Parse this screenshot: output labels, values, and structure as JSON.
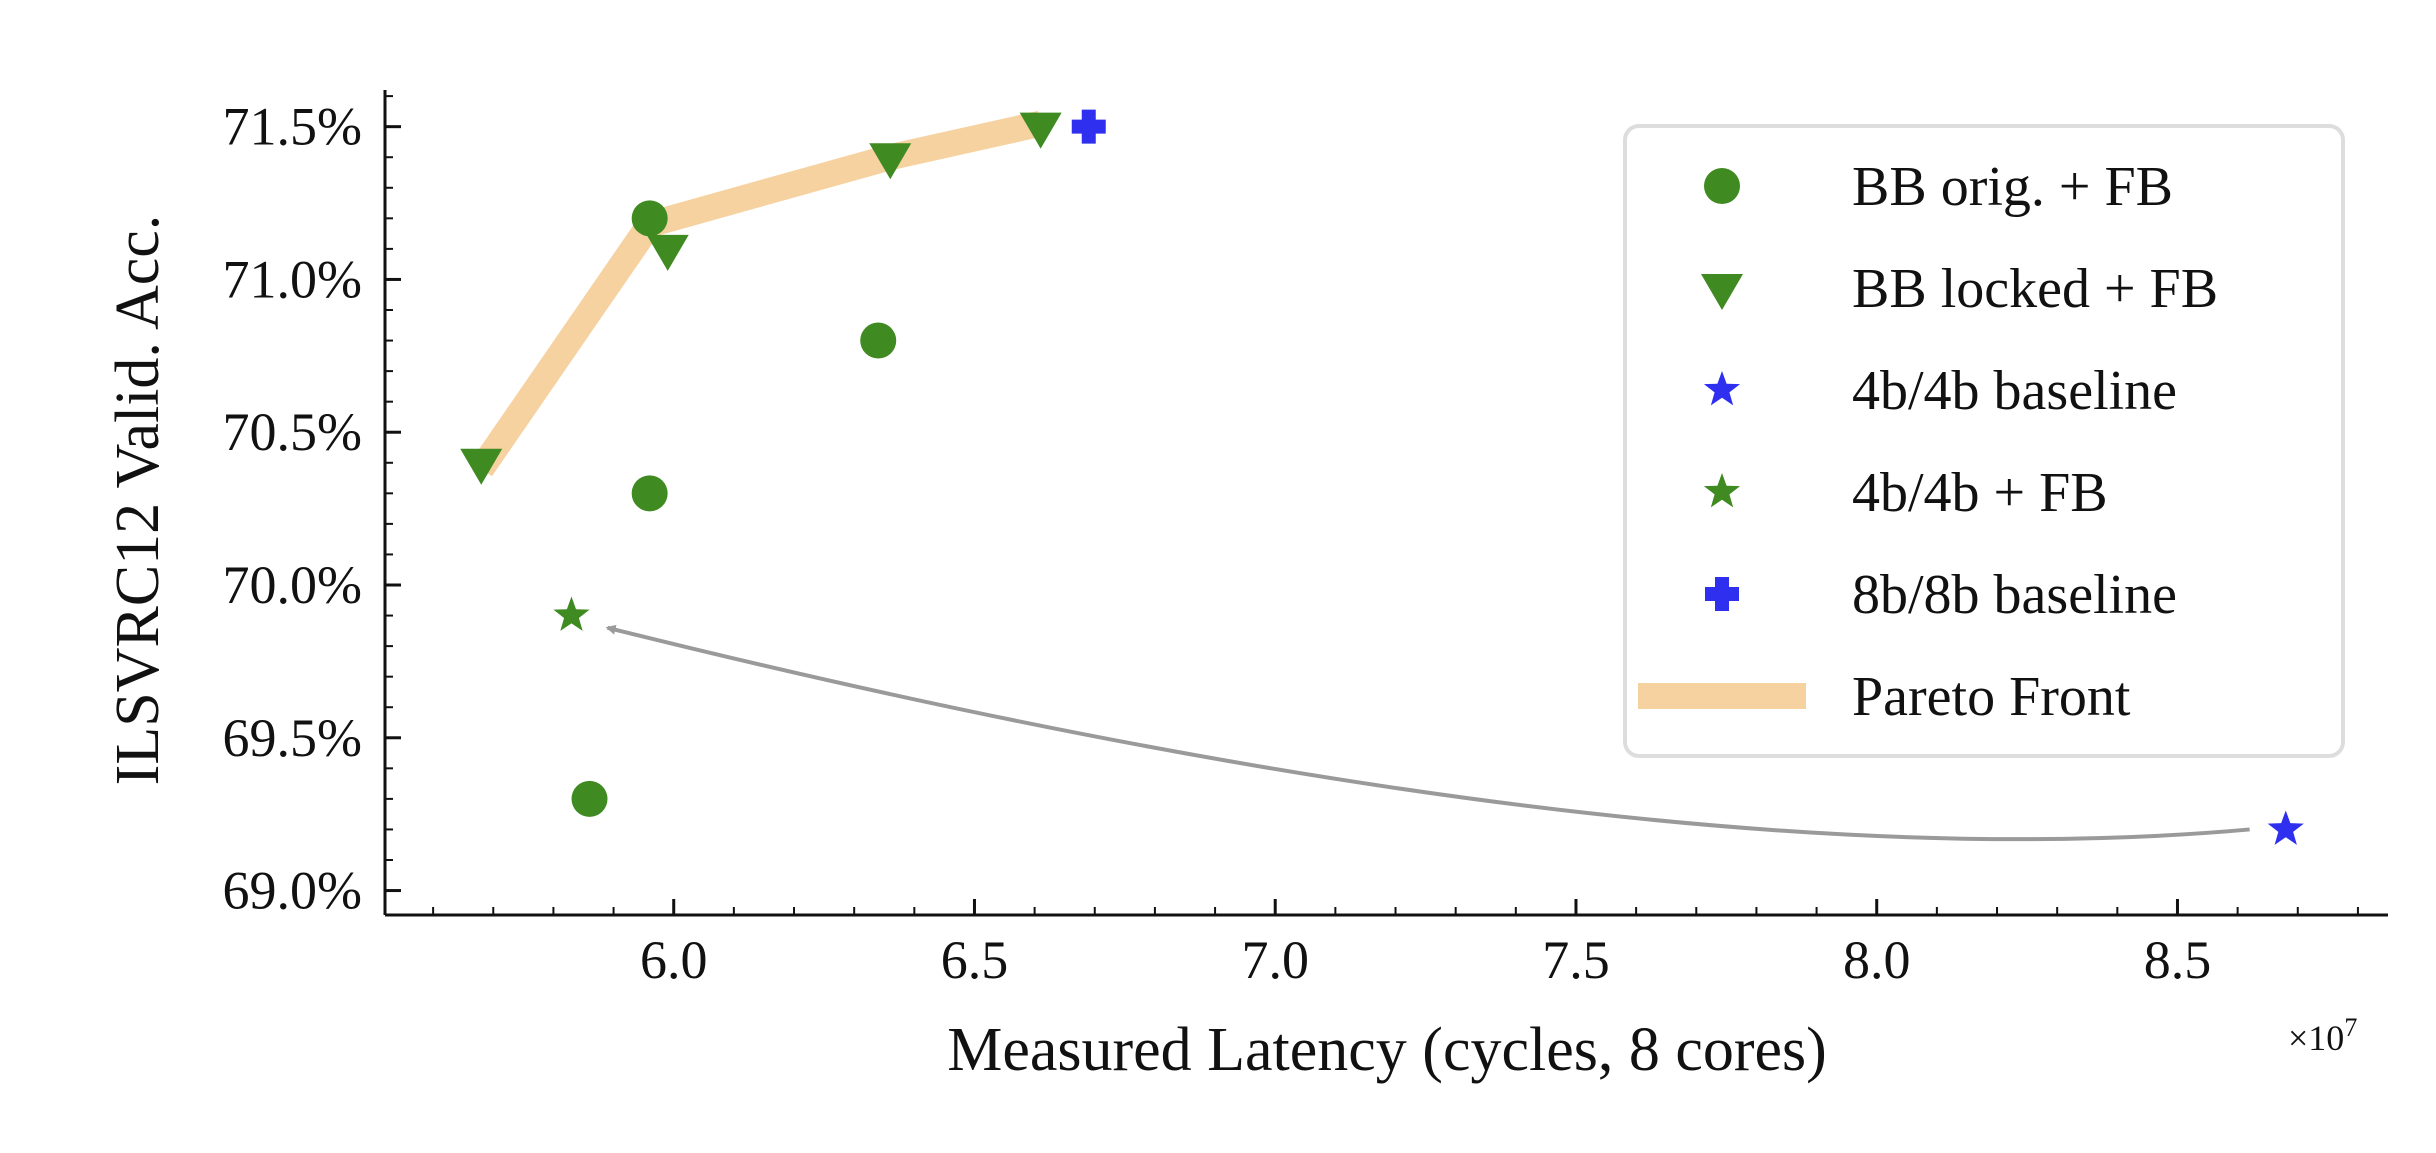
{
  "chart_data": {
    "type": "scatter",
    "xlabel": "Measured Latency (cycles, 8 cores)",
    "ylabel": "ILSVRC12 Valid. Acc.",
    "x_exponent_label": "×10",
    "x_exponent_power": "7",
    "xlim": [
      5.52,
      8.85
    ],
    "ylim": [
      68.92,
      71.62
    ],
    "xticks": [
      6.0,
      6.5,
      7.0,
      7.5,
      8.0,
      8.5
    ],
    "xtick_labels": [
      "6.0",
      "6.5",
      "7.0",
      "7.5",
      "8.0",
      "8.5"
    ],
    "yticks": [
      69.0,
      69.5,
      70.0,
      70.5,
      71.0,
      71.5
    ],
    "ytick_labels": [
      "69.0%",
      "69.5%",
      "70.0%",
      "70.5%",
      "71.0%",
      "71.5%"
    ],
    "colors": {
      "green": "#3f8a21",
      "blue": "#2f2ff0",
      "pareto": "#f6d2a0",
      "arrow": "#9a9a9a",
      "axis": "#111111"
    },
    "series": [
      {
        "name": "BB orig. + FB",
        "marker": "circle",
        "color": "green",
        "points": [
          [
            5.96,
            71.2
          ],
          [
            6.34,
            70.8
          ],
          [
            5.96,
            70.3
          ],
          [
            5.86,
            69.3
          ]
        ]
      },
      {
        "name": "BB locked + FB",
        "marker": "triangle-down",
        "color": "green",
        "points": [
          [
            5.68,
            70.4
          ],
          [
            5.99,
            71.1
          ],
          [
            6.36,
            71.4
          ],
          [
            6.61,
            71.5
          ]
        ]
      },
      {
        "name": "4b/4b baseline",
        "marker": "star",
        "color": "blue",
        "points": [
          [
            8.68,
            69.2
          ]
        ]
      },
      {
        "name": "4b/4b + FB",
        "marker": "star",
        "color": "green",
        "points": [
          [
            5.83,
            69.9
          ]
        ]
      },
      {
        "name": "8b/8b baseline",
        "marker": "plus",
        "color": "blue",
        "points": [
          [
            6.69,
            71.5
          ]
        ]
      }
    ],
    "pareto_front": {
      "name": "Pareto Front",
      "points": [
        [
          5.68,
          70.38
        ],
        [
          5.96,
          71.18
        ],
        [
          6.36,
          71.4
        ],
        [
          6.61,
          71.51
        ]
      ]
    },
    "annotation": {
      "type": "arrow",
      "from": [
        8.62,
        69.2
      ],
      "to": [
        5.89,
        69.86
      ],
      "control": [
        7.6,
        69.02
      ]
    },
    "legend": {
      "placement": "upper-right",
      "entries": [
        "BB orig. + FB",
        "BB locked + FB",
        "4b/4b baseline",
        "4b/4b + FB",
        "8b/8b baseline",
        "Pareto Front"
      ]
    }
  }
}
